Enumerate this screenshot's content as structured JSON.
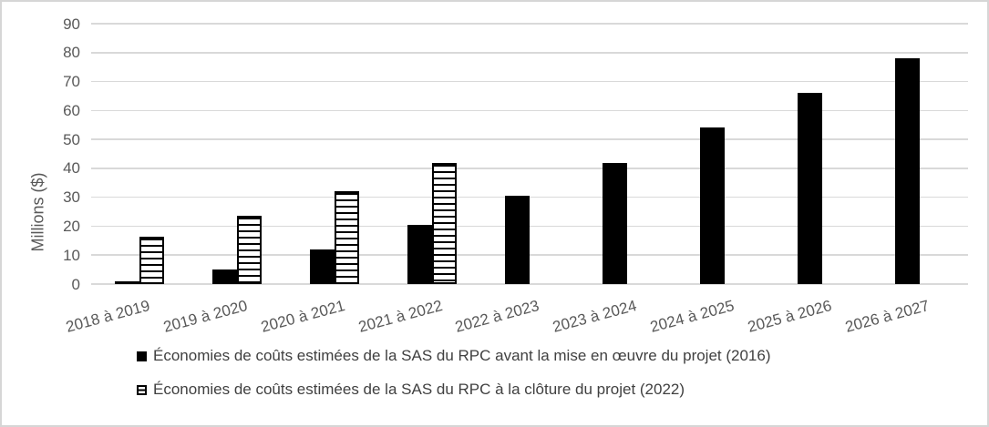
{
  "chart_data": {
    "type": "bar",
    "title": "",
    "xlabel": "",
    "ylabel": "Millions ($)",
    "categories": [
      "2018 à 2019",
      "2019 à 2020",
      "2020 à 2021",
      "2021 à 2022",
      "2022 à 2023",
      "2023 à 2024",
      "2024 à 2025",
      "2025 à 2026",
      "2026 à 2027"
    ],
    "series": [
      {
        "name": "Économies de coûts estimées de la SAS du RPC avant la mise en œuvre du projet (2016)",
        "pattern": "solid",
        "color": "#000000",
        "values": [
          1,
          5,
          12,
          20.5,
          30.5,
          42,
          54,
          66,
          78
        ]
      },
      {
        "name": "Économies de coûts estimées de la SAS du RPC à la clôture du projet (2022)",
        "pattern": "horizontal-stripes",
        "color": "#000000",
        "values": [
          16.5,
          23.5,
          32,
          42,
          null,
          null,
          null,
          null,
          null
        ]
      }
    ],
    "ylim": [
      0,
      90
    ],
    "ytick_step": 10,
    "yticks": [
      0,
      10,
      20,
      30,
      40,
      50,
      60,
      70,
      80,
      90
    ],
    "grid": true,
    "legend_position": "bottom-left",
    "colors": {
      "bar_fill": "#000000",
      "gridline": "#d9d9d9",
      "axis_text": "#595959",
      "legend_text": "#404040",
      "chart_border": "#d6d6d6"
    }
  }
}
